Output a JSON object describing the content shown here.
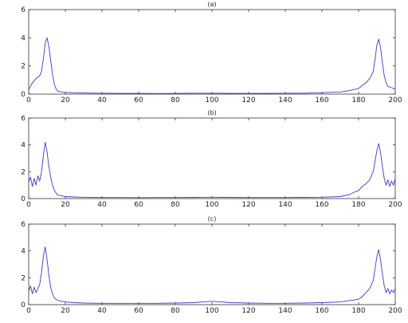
{
  "colors": {
    "line": "#3b3bc0",
    "axis": "#333333",
    "background": "#ffffff"
  },
  "chart_data": [
    {
      "type": "line",
      "title": "(a)",
      "xlim": [
        0,
        200
      ],
      "ylim": [
        0,
        6
      ],
      "xticks": [
        0,
        20,
        40,
        60,
        80,
        100,
        120,
        140,
        160,
        180,
        200
      ],
      "yticks": [
        0,
        2,
        4,
        6
      ],
      "grid": false,
      "series": [
        {
          "x": [
            0,
            2,
            4,
            6,
            7,
            8,
            9,
            10,
            11,
            12,
            13,
            14,
            15,
            16,
            18,
            20,
            25,
            30,
            40,
            50,
            60,
            70,
            80,
            90,
            100,
            110,
            120,
            130,
            140,
            150,
            160,
            170,
            175,
            180,
            182,
            184,
            186,
            188,
            189,
            190,
            191,
            192,
            193,
            194,
            195,
            196,
            198,
            200
          ],
          "values": [
            0.3,
            0.8,
            1.1,
            1.3,
            1.6,
            2.5,
            3.6,
            4.0,
            3.4,
            2.4,
            1.4,
            0.7,
            0.35,
            0.2,
            0.15,
            0.12,
            0.1,
            0.08,
            0.06,
            0.05,
            0.05,
            0.04,
            0.05,
            0.06,
            0.06,
            0.05,
            0.05,
            0.05,
            0.06,
            0.07,
            0.1,
            0.15,
            0.25,
            0.4,
            0.6,
            0.8,
            1.1,
            1.6,
            2.5,
            3.5,
            3.9,
            3.3,
            2.2,
            1.3,
            0.8,
            0.55,
            0.45,
            0.35
          ]
        }
      ]
    },
    {
      "type": "line",
      "title": "(b)",
      "xlim": [
        0,
        200
      ],
      "ylim": [
        0,
        6
      ],
      "xticks": [
        0,
        20,
        40,
        60,
        80,
        100,
        120,
        140,
        160,
        180,
        200
      ],
      "yticks": [
        0,
        2,
        4,
        6
      ],
      "grid": false,
      "series": [
        {
          "x": [
            0,
            1,
            2,
            3,
            4,
            5,
            6,
            7,
            8,
            9,
            10,
            11,
            12,
            13,
            14,
            15,
            16,
            18,
            20,
            25,
            30,
            40,
            50,
            60,
            70,
            80,
            90,
            100,
            110,
            120,
            130,
            140,
            150,
            160,
            170,
            175,
            178,
            180,
            182,
            184,
            186,
            188,
            189,
            190,
            191,
            192,
            193,
            194,
            195,
            196,
            197,
            198,
            199,
            200
          ],
          "values": [
            1.2,
            1.6,
            0.9,
            1.5,
            1.0,
            1.7,
            1.3,
            2.0,
            3.2,
            4.2,
            3.5,
            2.4,
            1.6,
            1.0,
            0.6,
            0.4,
            0.25,
            0.2,
            0.15,
            0.12,
            0.1,
            0.08,
            0.08,
            0.07,
            0.08,
            0.08,
            0.09,
            0.1,
            0.09,
            0.08,
            0.08,
            0.08,
            0.09,
            0.1,
            0.15,
            0.3,
            0.5,
            0.6,
            0.9,
            1.1,
            1.4,
            2.0,
            2.8,
            3.6,
            4.1,
            3.4,
            2.4,
            1.5,
            1.0,
            1.4,
            0.9,
            1.3,
            1.0,
            1.5
          ]
        }
      ]
    },
    {
      "type": "line",
      "title": "(c)",
      "xlim": [
        0,
        200
      ],
      "ylim": [
        0,
        6
      ],
      "xticks": [
        0,
        20,
        40,
        60,
        80,
        100,
        120,
        140,
        160,
        180,
        200
      ],
      "yticks": [
        0,
        2,
        4,
        6
      ],
      "grid": false,
      "series": [
        {
          "x": [
            0,
            1,
            2,
            3,
            4,
            5,
            6,
            7,
            8,
            9,
            10,
            11,
            12,
            13,
            14,
            16,
            18,
            20,
            25,
            30,
            40,
            50,
            60,
            70,
            80,
            90,
            95,
            100,
            105,
            110,
            120,
            130,
            140,
            150,
            160,
            170,
            175,
            180,
            182,
            184,
            186,
            188,
            189,
            190,
            191,
            192,
            193,
            194,
            195,
            196,
            197,
            198,
            199,
            200
          ],
          "values": [
            1.0,
            1.4,
            0.8,
            1.3,
            0.9,
            1.2,
            1.5,
            2.4,
            3.6,
            4.3,
            3.4,
            2.2,
            1.3,
            0.8,
            0.5,
            0.3,
            0.25,
            0.2,
            0.15,
            0.12,
            0.1,
            0.1,
            0.1,
            0.1,
            0.12,
            0.15,
            0.2,
            0.25,
            0.2,
            0.15,
            0.12,
            0.1,
            0.1,
            0.12,
            0.15,
            0.2,
            0.3,
            0.4,
            0.6,
            0.9,
            1.2,
            1.8,
            2.7,
            3.6,
            4.1,
            3.3,
            2.3,
            1.4,
            0.9,
            1.2,
            0.8,
            1.1,
            0.9,
            1.2
          ]
        }
      ]
    }
  ]
}
